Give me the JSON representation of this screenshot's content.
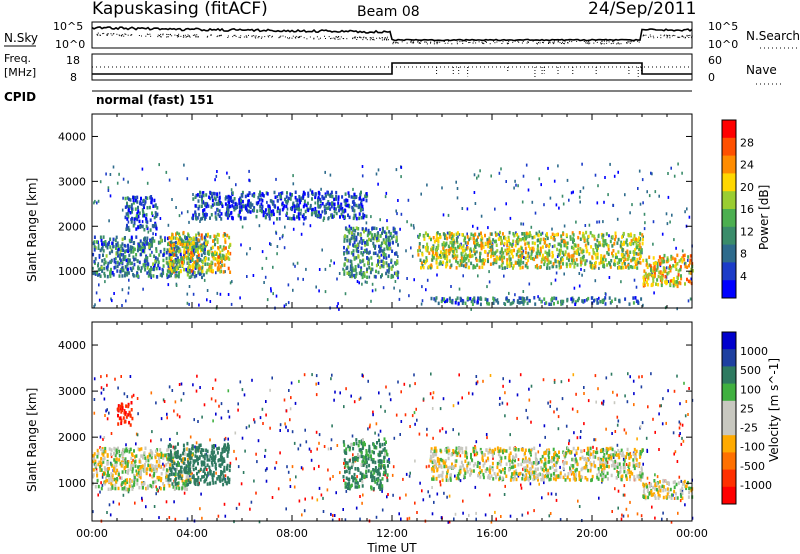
{
  "header": {
    "station": "Kapuskasing (fitACF)",
    "beam": "Beam 08",
    "date": "24/Sep/2011"
  },
  "top_panels": {
    "nsky_label": "N.Sky",
    "nsky_ticks": [
      "10^5",
      "10^0"
    ],
    "nsearch_label": "N.Search",
    "nsearch_ticks": [
      "10^5",
      "10^0"
    ],
    "freq_label": "Freq.",
    "freq_unit": "[MHz]",
    "freq_ticks": [
      "18",
      "8"
    ],
    "nave_label": "Nave",
    "nave_ticks": [
      "60",
      "0"
    ],
    "cpid_label": "CPID",
    "cpid_value": "normal (fast) 151"
  },
  "colors": {
    "power_scale": [
      "#0000ff",
      "#1c3cc8",
      "#2e6b8c",
      "#3a8c6a",
      "#4caf50",
      "#9acd32",
      "#ffd700",
      "#ff8c00",
      "#ff5000",
      "#ff0000"
    ],
    "velocity_scale": [
      "#0000cc",
      "#1e40a0",
      "#2e7a60",
      "#40b040",
      "#c8c8c0",
      "#c8c8c0",
      "#ffaa00",
      "#ff7000",
      "#ff3000",
      "#ff0000"
    ]
  },
  "chart_data": [
    {
      "type": "heatmap",
      "name": "power",
      "ylabel": "Slant Range [km]",
      "ylim": [
        180,
        4500
      ],
      "yticks": [
        "1000",
        "2000",
        "3000",
        "4000"
      ],
      "colorbar_label": "Power [dB]",
      "colorbar_ticks": [
        "4",
        "8",
        "12",
        "16",
        "20",
        "24",
        "28"
      ],
      "colorbar_range": [
        0,
        30
      ],
      "xticks": [
        "00:00",
        "04:00",
        "08:00",
        "12:00",
        "16:00",
        "20:00",
        "00:00"
      ],
      "xlim_hours": [
        0,
        24
      ],
      "regions": [
        {
          "t0": 0.0,
          "t1": 4.5,
          "r0": 900,
          "r1": 1800,
          "value": 9
        },
        {
          "t0": 1.3,
          "t1": 2.6,
          "r0": 1950,
          "r1": 2700,
          "value": 6
        },
        {
          "t0": 3.0,
          "t1": 5.5,
          "r0": 1000,
          "r1": 1900,
          "value": 18
        },
        {
          "t0": 4.0,
          "t1": 11.0,
          "r0": 2200,
          "r1": 2800,
          "value": 5
        },
        {
          "t0": 10.0,
          "t1": 12.2,
          "r0": 900,
          "r1": 2000,
          "value": 10
        },
        {
          "t0": 13.0,
          "t1": 22.0,
          "r0": 1100,
          "r1": 1900,
          "value": 17
        },
        {
          "t0": 22.0,
          "t1": 24.0,
          "r0": 700,
          "r1": 1400,
          "value": 20
        },
        {
          "t0": 13.5,
          "t1": 22.0,
          "r0": 300,
          "r1": 450,
          "value": 8
        }
      ]
    },
    {
      "type": "heatmap",
      "name": "velocity",
      "ylabel": "Slant Range [km]",
      "ylim": [
        180,
        4500
      ],
      "yticks": [
        "1000",
        "2000",
        "3000",
        "4000"
      ],
      "colorbar_label": "Velocity [m s^-1]",
      "colorbar_ticks": [
        "1000",
        "500",
        "100",
        "25",
        "-25",
        "-100",
        "-500",
        "-1000"
      ],
      "xlabel": "Time UT",
      "xticks": [
        "00:00",
        "04:00",
        "08:00",
        "12:00",
        "16:00",
        "20:00",
        "00:00"
      ],
      "xlim_hours": [
        0,
        24
      ],
      "regions": [
        {
          "t0": 0.0,
          "t1": 4.0,
          "r0": 900,
          "r1": 1800,
          "value": 0
        },
        {
          "t0": 1.0,
          "t1": 1.6,
          "r0": 2300,
          "r1": 2800,
          "value": -700
        },
        {
          "t0": 3.0,
          "t1": 5.5,
          "r0": 1000,
          "r1": 1900,
          "value": 150
        },
        {
          "t0": 13.5,
          "t1": 22.0,
          "r0": 1100,
          "r1": 1800,
          "value": 0
        },
        {
          "t0": 22.0,
          "t1": 24.0,
          "r0": 700,
          "r1": 1100,
          "value": 0
        },
        {
          "t0": 10.0,
          "t1": 11.8,
          "r0": 900,
          "r1": 2000,
          "value": 80
        }
      ]
    }
  ]
}
